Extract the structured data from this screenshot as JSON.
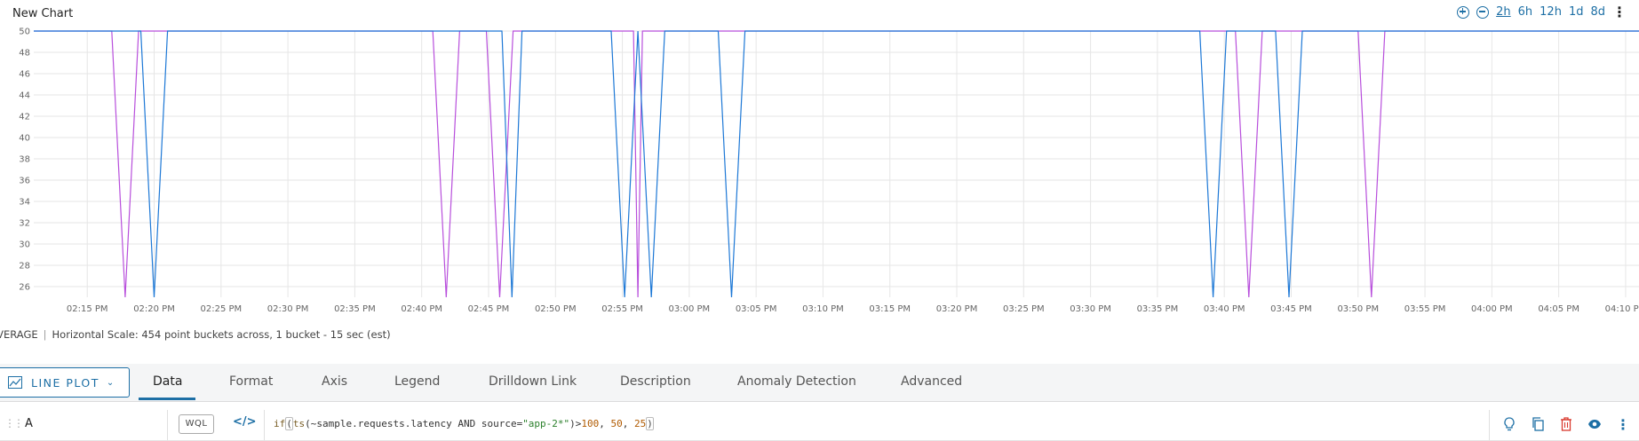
{
  "chart": {
    "title": "New Chart",
    "time_ranges": [
      {
        "label": "2h",
        "active": true
      },
      {
        "label": "6h",
        "active": false
      },
      {
        "label": "12h",
        "active": false
      },
      {
        "label": "1d",
        "active": false
      },
      {
        "label": "8d",
        "active": false
      }
    ]
  },
  "chart_data": {
    "type": "line",
    "title": "New Chart",
    "xlabel": "",
    "ylabel": "",
    "ylim": [
      25,
      50
    ],
    "yticks": [
      26,
      28,
      30,
      32,
      34,
      36,
      38,
      40,
      42,
      44,
      46,
      48,
      50
    ],
    "xlim": [
      "02:11",
      "04:11"
    ],
    "xticks": [
      "02:15 PM",
      "02:20 PM",
      "02:25 PM",
      "02:30 PM",
      "02:35 PM",
      "02:40 PM",
      "02:45 PM",
      "02:50 PM",
      "02:55 PM",
      "03:00 PM",
      "03:05 PM",
      "03:10 PM",
      "03:15 PM",
      "03:20 PM",
      "03:25 PM",
      "03:30 PM",
      "03:35 PM",
      "03:40 PM",
      "03:45 PM",
      "03:50 PM",
      "03:55 PM",
      "04:00 PM",
      "04:05 PM",
      "04:10 PM"
    ],
    "grid": true,
    "legend": "none",
    "baseline": 50,
    "drop_value": 25,
    "series": [
      {
        "color": "#b84fdc",
        "dips": [
          [
            "02:16:50",
            "02:17:50",
            "02:18:50"
          ],
          [
            "02:40:50",
            "02:41:50",
            "02:42:50"
          ],
          [
            "02:44:50",
            "02:45:50",
            "02:46:50"
          ],
          [
            "02:55:50",
            "02:56:10",
            "02:56:30"
          ],
          [
            "03:40:50",
            "03:41:50",
            "03:42:50"
          ],
          [
            "03:50:00",
            "03:51:00",
            "03:52:00"
          ]
        ]
      },
      {
        "color": "#1d78d6",
        "dips": [
          [
            "02:19:00",
            "02:20:00",
            "02:21:00"
          ],
          [
            "02:46:00",
            "02:46:45",
            "02:47:30"
          ],
          [
            "02:54:10",
            "02:55:10",
            "02:56:10"
          ],
          [
            "02:56:10",
            "02:57:10",
            "02:58:10"
          ],
          [
            "03:02:10",
            "03:03:10",
            "03:04:10"
          ],
          [
            "03:38:10",
            "03:39:10",
            "03:40:10"
          ],
          [
            "03:43:50",
            "03:44:50",
            "03:45:50"
          ]
        ]
      }
    ]
  },
  "stats": {
    "aggregation": "AVERAGE",
    "scale_text": "Horizontal Scale: 454 point buckets across, 1 bucket - 15 sec (est)"
  },
  "editor": {
    "plot_type_label": "LINE PLOT",
    "tabs": [
      {
        "label": "Data",
        "active": true
      },
      {
        "label": "Format",
        "active": false
      },
      {
        "label": "Axis",
        "active": false
      },
      {
        "label": "Legend",
        "active": false
      },
      {
        "label": "Drilldown Link",
        "active": false
      },
      {
        "label": "Description",
        "active": false
      },
      {
        "label": "Anomaly Detection",
        "active": false
      },
      {
        "label": "Advanced",
        "active": false
      }
    ]
  },
  "query": {
    "name": "A",
    "mode_label": "WQL",
    "tokens": {
      "fn_if": "if",
      "p1": "(",
      "fn_ts": "ts",
      "p2": "(",
      "metric": "~sample.requests.latency",
      "kw_and": " AND ",
      "attr": "source=",
      "str": "\"app-2*\"",
      "p3": ")",
      "cmp": ">",
      "n1": "100",
      "c1": ", ",
      "n2": "50",
      "c2": ", ",
      "n3": "25",
      "p4": ")"
    }
  },
  "icons": {
    "zoom_in": "zoom-in-icon",
    "zoom_out": "zoom-out-icon",
    "menu": "kebab-menu-icon",
    "line_plot": "line-plot-icon",
    "drag": "drag-handle-icon",
    "code": "code-icon",
    "hint": "lightbulb-icon",
    "copy": "copy-icon",
    "delete": "trash-icon",
    "view": "eye-icon"
  }
}
